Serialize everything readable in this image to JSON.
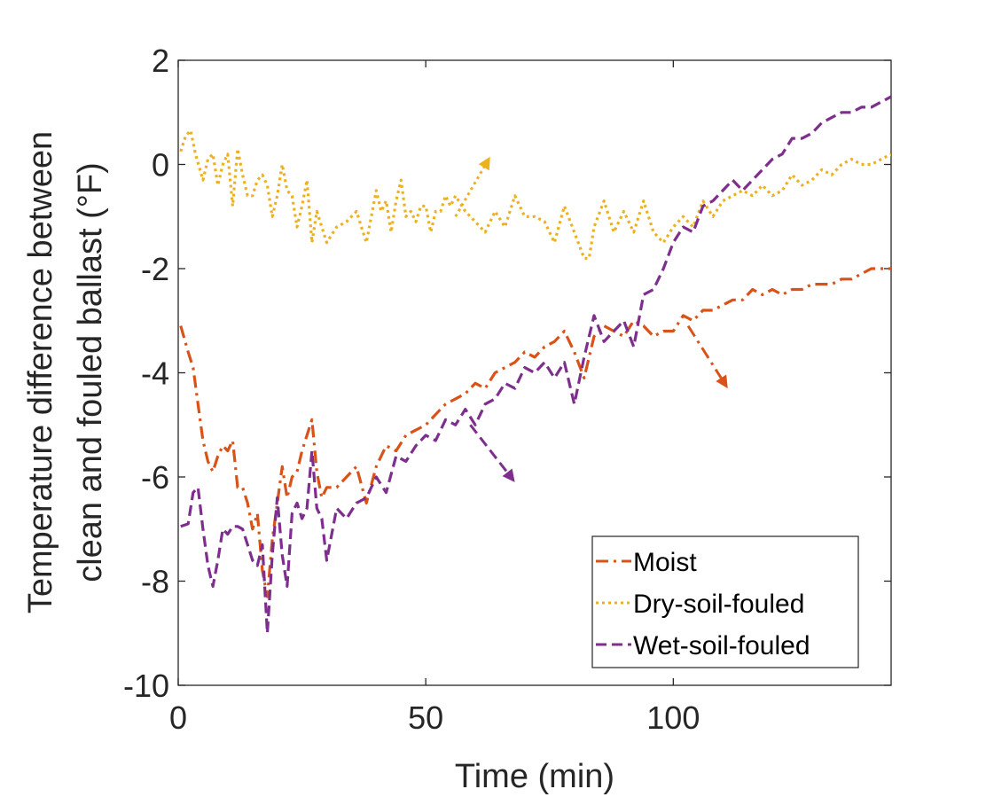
{
  "chart_data": {
    "type": "line",
    "title": "",
    "xlabel": "Time (min)",
    "ylabel_lines": [
      "Temperature difference between",
      "clean and fouled ballast (°F)"
    ],
    "xlim": [
      0,
      144
    ],
    "ylim": [
      -10,
      2
    ],
    "xticks": [
      0,
      50,
      100
    ],
    "xtick_labels": [
      "0",
      "50",
      "100"
    ],
    "yticks": [
      2,
      0,
      -2,
      -4,
      -6,
      -8,
      -10
    ],
    "ytick_labels": [
      "2",
      "0",
      "-2",
      "-4",
      "-6",
      "-8",
      "-10"
    ],
    "grid": false,
    "legend_position": "bottom-right",
    "series": [
      {
        "name": "Moist",
        "color": "#D95319",
        "dash": "dash-dot",
        "x": [
          0.5,
          2,
          3,
          4,
          5,
          6,
          7,
          8,
          9,
          10,
          11,
          12,
          13,
          14,
          15,
          16,
          17,
          18,
          19,
          20,
          21,
          22,
          23,
          24,
          25,
          26,
          27,
          28,
          29,
          30,
          32,
          34,
          36,
          38,
          40,
          42,
          44,
          46,
          48,
          50,
          52,
          54,
          56,
          58,
          60,
          62,
          64,
          66,
          68,
          70,
          72,
          74,
          76,
          78,
          80,
          82,
          84,
          86,
          88,
          90,
          92,
          94,
          96,
          98,
          100,
          102,
          104,
          106,
          108,
          110,
          112,
          114,
          116,
          118,
          120,
          122,
          124,
          126,
          128,
          130,
          132,
          134,
          136,
          138,
          140,
          142,
          144
        ],
        "y": [
          -3.1,
          -3.6,
          -3.9,
          -4.6,
          -5.3,
          -5.7,
          -5.9,
          -5.6,
          -5.4,
          -5.5,
          -5.3,
          -6.2,
          -6.2,
          -6.5,
          -7.0,
          -6.7,
          -7.8,
          -8.3,
          -7.2,
          -6.5,
          -5.8,
          -6.4,
          -6.0,
          -5.9,
          -5.5,
          -5.2,
          -4.9,
          -5.9,
          -6.4,
          -6.2,
          -6.2,
          -6.0,
          -5.8,
          -6.5,
          -5.8,
          -5.4,
          -5.5,
          -5.2,
          -5.1,
          -5.0,
          -4.8,
          -4.6,
          -4.5,
          -4.4,
          -4.2,
          -4.3,
          -4.0,
          -3.9,
          -3.8,
          -3.6,
          -3.7,
          -3.5,
          -3.4,
          -3.2,
          -3.6,
          -4.1,
          -3.3,
          -3.1,
          -3.2,
          -3.3,
          -3.0,
          -3.1,
          -3.3,
          -3.2,
          -3.2,
          -2.9,
          -3.0,
          -2.8,
          -2.8,
          -2.7,
          -2.6,
          -2.6,
          -2.4,
          -2.5,
          -2.4,
          -2.5,
          -2.4,
          -2.4,
          -2.3,
          -2.3,
          -2.3,
          -2.2,
          -2.2,
          -2.1,
          -2.0,
          -2.0,
          -2.0
        ]
      },
      {
        "name": "Dry-soil-fouled",
        "color": "#EDB120",
        "dash": "dotted",
        "x": [
          0.5,
          1.5,
          2.5,
          3.5,
          5,
          6,
          7,
          8,
          9,
          10,
          11,
          12,
          13,
          14,
          15,
          16,
          17,
          18,
          19,
          20,
          21,
          22,
          23,
          24,
          25,
          26,
          27,
          28,
          30,
          32,
          34,
          36,
          38,
          40,
          41,
          42,
          43,
          44,
          45,
          46,
          47,
          48,
          49,
          50,
          51,
          52,
          53,
          54,
          55,
          56,
          58,
          60,
          62,
          64,
          66,
          68,
          70,
          72,
          74,
          76,
          78,
          80,
          82,
          83,
          84,
          86,
          88,
          90,
          92,
          94,
          96,
          98,
          100,
          102,
          104,
          106,
          108,
          110,
          112,
          114,
          116,
          118,
          120,
          122,
          124,
          126,
          128,
          130,
          132,
          134,
          136,
          138,
          140,
          142,
          144
        ],
        "y": [
          0.25,
          0.55,
          0.65,
          0.2,
          -0.3,
          0.1,
          0.2,
          -0.4,
          0.0,
          0.2,
          -0.8,
          0.3,
          -0.2,
          -0.6,
          -0.6,
          -0.3,
          -0.2,
          -0.4,
          -1.0,
          -0.6,
          0.0,
          -0.5,
          -0.6,
          -1.2,
          -0.8,
          -0.3,
          -1.5,
          -0.9,
          -1.5,
          -1.2,
          -1.1,
          -0.9,
          -1.5,
          -0.5,
          -0.9,
          -0.7,
          -1.3,
          -0.7,
          -0.3,
          -1.0,
          -0.9,
          -1.1,
          -0.8,
          -0.8,
          -1.3,
          -0.9,
          -0.9,
          -0.6,
          -0.8,
          -0.6,
          -0.9,
          -1.1,
          -1.3,
          -0.9,
          -1.2,
          -0.6,
          -1.0,
          -1.0,
          -1.1,
          -1.5,
          -0.8,
          -1.3,
          -1.8,
          -1.8,
          -1.2,
          -0.7,
          -1.3,
          -0.9,
          -1.3,
          -0.7,
          -1.3,
          -1.5,
          -1.2,
          -1.0,
          -1.2,
          -0.7,
          -1.0,
          -0.7,
          -0.6,
          -0.5,
          -0.6,
          -0.4,
          -0.6,
          -0.5,
          -0.2,
          -0.4,
          -0.3,
          -0.1,
          -0.2,
          0.0,
          0.1,
          0.0,
          0.0,
          0.1,
          0.2
        ]
      },
      {
        "name": "Wet-soil-fouled",
        "color": "#7E2F8E",
        "dash": "dashed",
        "x": [
          0.5,
          2,
          3,
          4,
          5,
          6,
          7,
          8,
          9,
          10,
          11,
          12,
          13,
          14,
          15,
          16,
          17,
          18,
          19,
          20,
          21,
          22,
          23,
          24,
          25,
          26,
          27,
          28,
          29,
          30,
          32,
          34,
          36,
          38,
          40,
          42,
          44,
          46,
          48,
          50,
          52,
          54,
          56,
          58,
          60,
          62,
          64,
          66,
          68,
          70,
          72,
          74,
          76,
          78,
          80,
          82,
          84,
          86,
          88,
          90,
          92,
          94,
          96,
          98,
          100,
          102,
          104,
          106,
          108,
          110,
          112,
          114,
          116,
          118,
          120,
          122,
          124,
          126,
          128,
          130,
          132,
          134,
          136,
          138,
          140,
          142,
          144
        ],
        "y": [
          -6.95,
          -6.9,
          -6.3,
          -6.2,
          -7.0,
          -7.7,
          -8.1,
          -7.6,
          -7.0,
          -7.1,
          -6.95,
          -6.95,
          -7.0,
          -7.3,
          -7.6,
          -7.7,
          -7.3,
          -9.0,
          -7.5,
          -6.4,
          -7.5,
          -8.1,
          -6.7,
          -6.5,
          -6.8,
          -6.6,
          -5.5,
          -6.6,
          -6.8,
          -7.6,
          -6.6,
          -6.8,
          -6.5,
          -6.4,
          -6.0,
          -6.3,
          -5.6,
          -5.7,
          -5.4,
          -5.2,
          -5.3,
          -4.9,
          -5.0,
          -4.7,
          -5.0,
          -4.6,
          -4.5,
          -4.2,
          -4.3,
          -3.9,
          -4.0,
          -3.8,
          -4.1,
          -3.8,
          -4.6,
          -3.7,
          -2.9,
          -3.4,
          -3.2,
          -3.0,
          -3.5,
          -2.5,
          -2.4,
          -2.0,
          -1.5,
          -1.2,
          -1.3,
          -0.8,
          -0.7,
          -0.5,
          -0.3,
          -0.5,
          -0.3,
          -0.1,
          0.1,
          0.2,
          0.5,
          0.5,
          0.6,
          0.8,
          0.9,
          1.0,
          1.0,
          1.1,
          1.1,
          1.2,
          1.3
        ]
      }
    ],
    "annotations": [
      {
        "type": "arrow",
        "series": "Dry-soil-fouled",
        "from": [
          56,
          -1.0
        ],
        "to": [
          63,
          0.15
        ]
      },
      {
        "type": "arrow",
        "series": "Moist",
        "from": [
          103,
          -3.1
        ],
        "to": [
          111,
          -4.3
        ]
      },
      {
        "type": "arrow",
        "series": "Wet-soil-fouled",
        "from": [
          59,
          -5.0
        ],
        "to": [
          68,
          -6.1
        ]
      }
    ]
  }
}
